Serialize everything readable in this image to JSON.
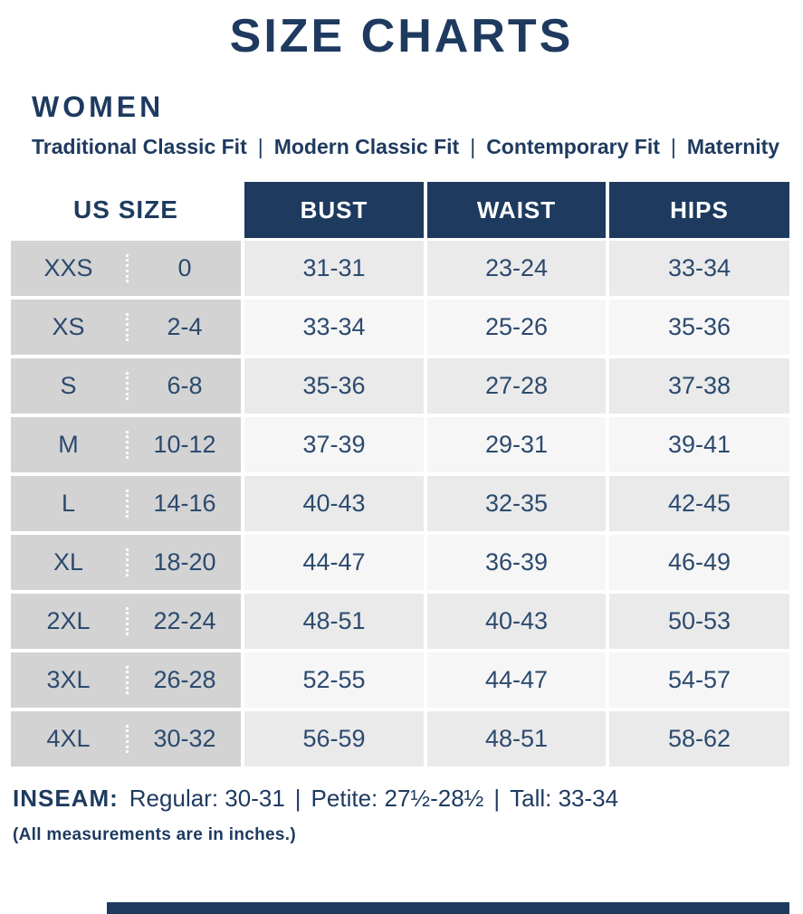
{
  "page": {
    "title": "SIZE CHARTS",
    "section": "WOMEN"
  },
  "fit_line": {
    "items": [
      "Traditional Classic Fit",
      "Modern Classic Fit",
      "Contemporary Fit",
      "Maternity"
    ],
    "separator": "|"
  },
  "table": {
    "corner_header": "US SIZE",
    "columns": [
      "BUST",
      "WAIST",
      "HIPS"
    ],
    "rows": [
      {
        "size": "XXS",
        "us": "0",
        "bust": "31-31",
        "waist": "23-24",
        "hips": "33-34"
      },
      {
        "size": "XS",
        "us": "2-4",
        "bust": "33-34",
        "waist": "25-26",
        "hips": "35-36"
      },
      {
        "size": "S",
        "us": "6-8",
        "bust": "35-36",
        "waist": "27-28",
        "hips": "37-38"
      },
      {
        "size": "M",
        "us": "10-12",
        "bust": "37-39",
        "waist": "29-31",
        "hips": "39-41"
      },
      {
        "size": "L",
        "us": "14-16",
        "bust": "40-43",
        "waist": "32-35",
        "hips": "42-45"
      },
      {
        "size": "XL",
        "us": "18-20",
        "bust": "44-47",
        "waist": "36-39",
        "hips": "46-49"
      },
      {
        "size": "2XL",
        "us": "22-24",
        "bust": "48-51",
        "waist": "40-43",
        "hips": "50-53"
      },
      {
        "size": "3XL",
        "us": "26-28",
        "bust": "52-55",
        "waist": "44-47",
        "hips": "54-57"
      },
      {
        "size": "4XL",
        "us": "30-32",
        "bust": "56-59",
        "waist": "48-51",
        "hips": "58-62"
      }
    ]
  },
  "inseam": {
    "label": "INSEAM:",
    "regular": "Regular: 30-31",
    "petite": "Petite: 27½-28½",
    "tall": "Tall: 33-34",
    "separator": "|"
  },
  "note": "(All measurements are in inches.)",
  "colors": {
    "navy": "#1e3a5f",
    "heading_navy": "#1e3a5f",
    "cell_text": "#2c4a6e",
    "left_grey": "#d3d3d3",
    "row_grey": "#eaeaea",
    "row_light": "#f6f6f6"
  }
}
